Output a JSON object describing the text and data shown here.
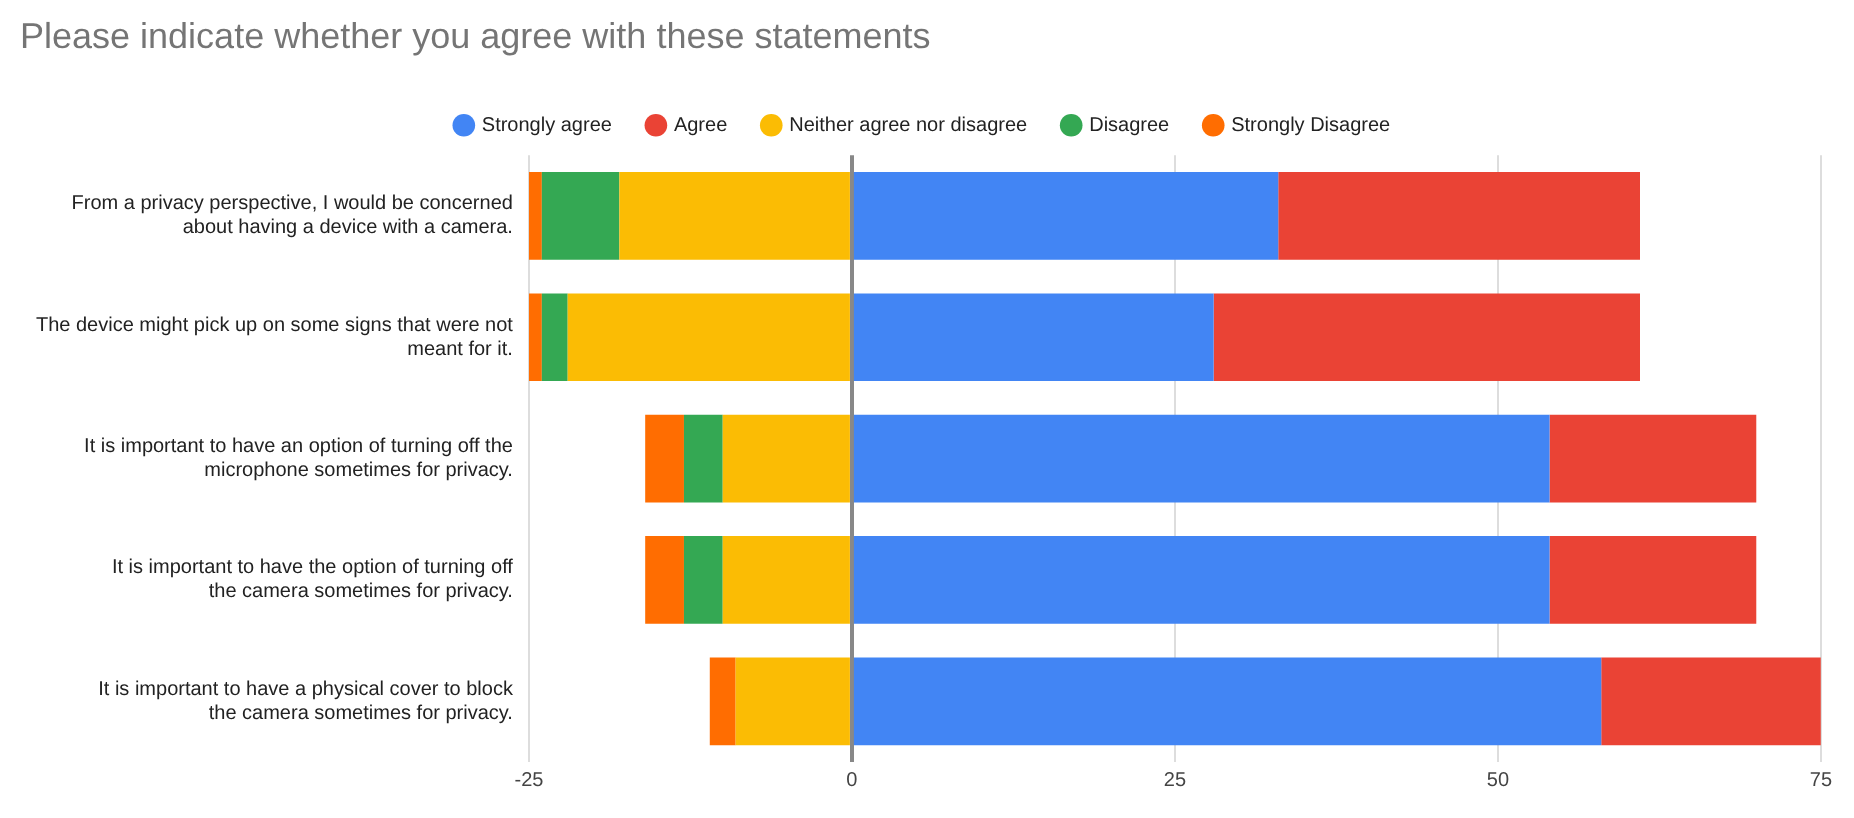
{
  "chart_data": {
    "type": "bar",
    "orientation": "horizontal",
    "stacked": true,
    "title": "Please indicate whether you agree with these statements",
    "categories": [
      "From a privacy perspective, I would be concerned about having a device with a camera.",
      "The device might pick up on some signs that were not meant for it.",
      "It is important to have an option of turning off the microphone sometimes for privacy.",
      "It is important to have the option of turning off the camera sometimes for privacy.",
      "It is important to have a physical cover to block the camera sometimes for privacy."
    ],
    "series": [
      {
        "name": "Strongly agree",
        "color": "#4285f4",
        "values": [
          33,
          28,
          54,
          54,
          58
        ]
      },
      {
        "name": "Agree",
        "color": "#ea4335",
        "values": [
          28,
          33,
          16,
          16,
          17
        ]
      },
      {
        "name": "Neither agree nor disagree",
        "color": "#fbbc04",
        "values": [
          -18,
          -22,
          -10,
          -10,
          -9
        ]
      },
      {
        "name": "Disagree",
        "color": "#34a853",
        "values": [
          -6,
          -2,
          -3,
          -3,
          0
        ]
      },
      {
        "name": "Strongly Disagree",
        "color": "#ff6d01",
        "values": [
          -1,
          -1,
          -3,
          -3,
          -2
        ]
      }
    ],
    "xlim": [
      -25,
      75
    ],
    "xticks": [
      -25,
      0,
      25,
      50,
      75
    ],
    "grid": "x",
    "legend": "top"
  }
}
